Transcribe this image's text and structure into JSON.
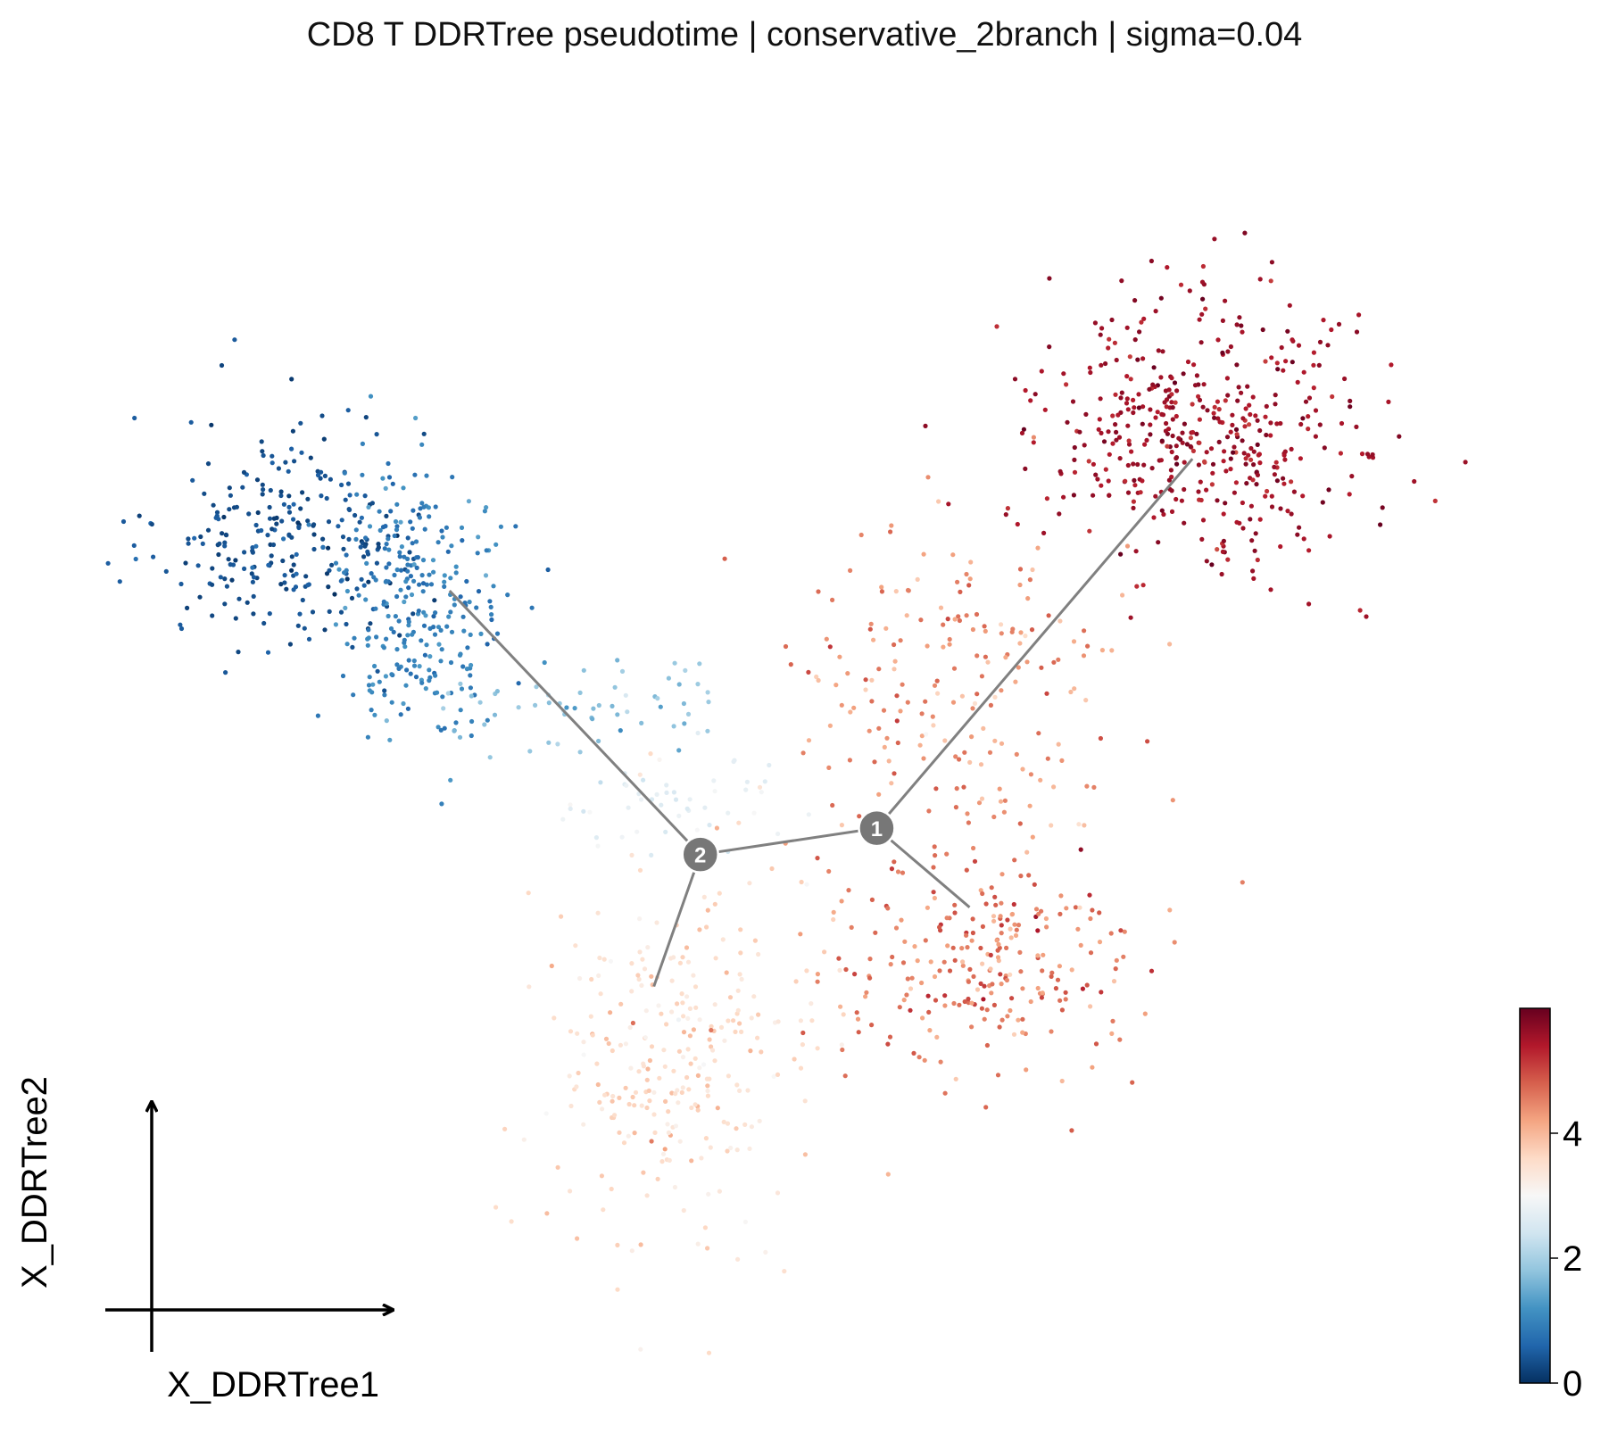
{
  "chart_data": {
    "type": "scatter",
    "title": "CD8 T DDRTree pseudotime | conservative_2branch | sigma=0.04",
    "xlabel": "X_DDRTree1",
    "ylabel": "X_DDRTree2",
    "color_variable": "pseudotime",
    "colormap": "RdBu_r",
    "colorbar": {
      "range": [
        0,
        6
      ],
      "ticks": [
        0,
        2,
        4
      ],
      "placement": "bottom-right"
    },
    "axis_style": "arrows-only, no ticks, no grid",
    "grid": false,
    "tree": {
      "line_color": "#808080",
      "nodes": [
        {
          "label": "1",
          "x": 0.0,
          "y": 0.0
        },
        {
          "label": "2",
          "x": -1.9,
          "y": -0.3
        }
      ],
      "branch_tips": [
        {
          "x": -4.6,
          "y": 2.7
        },
        {
          "x": 3.4,
          "y": 4.2
        },
        {
          "x": -2.4,
          "y": -1.8
        },
        {
          "x": 1.0,
          "y": -0.9
        }
      ],
      "edges": [
        [
          0,
          1
        ],
        [
          1,
          "tip0"
        ],
        [
          0,
          "tip1"
        ],
        [
          1,
          "tip2"
        ],
        [
          0,
          "tip3"
        ]
      ]
    },
    "clusters": [
      {
        "name": "",
        "center": [
          -6.3,
          3.3
        ],
        "spread": [
          0.7,
          0.7
        ],
        "count": 260,
        "pseudotime_mean": 0.35,
        "pseudotime_sd": 0.15
      },
      {
        "name": "",
        "center": [
          -4.9,
          2.6
        ],
        "spread": [
          0.45,
          0.8
        ],
        "count": 280,
        "pseudotime_mean": 0.95,
        "pseudotime_sd": 0.2
      },
      {
        "name": "",
        "center": [
          -3.2,
          1.4
        ],
        "spread": [
          0.9,
          0.3
        ],
        "count": 60,
        "pseudotime_mean": 1.8,
        "pseudotime_sd": 0.25
      },
      {
        "name": "",
        "center": [
          -2.2,
          0.3
        ],
        "spread": [
          0.6,
          0.3
        ],
        "count": 50,
        "pseudotime_mean": 2.7,
        "pseudotime_sd": 0.2
      },
      {
        "name": "",
        "center": [
          -2.2,
          -2.6
        ],
        "spread": [
          0.7,
          1.1
        ],
        "count": 280,
        "pseudotime_mean": 3.55,
        "pseudotime_sd": 0.25
      },
      {
        "name": "",
        "center": [
          1.1,
          -1.6
        ],
        "spread": [
          0.9,
          0.7
        ],
        "count": 260,
        "pseudotime_mean": 4.6,
        "pseudotime_sd": 0.35
      },
      {
        "name": "",
        "center": [
          0.8,
          1.6
        ],
        "spread": [
          0.9,
          1.1
        ],
        "count": 200,
        "pseudotime_mean": 4.3,
        "pseudotime_sd": 0.4
      },
      {
        "name": "",
        "center": [
          3.5,
          4.5
        ],
        "spread": [
          0.9,
          0.8
        ],
        "count": 460,
        "pseudotime_mean": 5.55,
        "pseudotime_sd": 0.2
      }
    ],
    "xlim": [
      -8.0,
      6.8
    ],
    "ylim": [
      -5.6,
      8.2
    ]
  }
}
